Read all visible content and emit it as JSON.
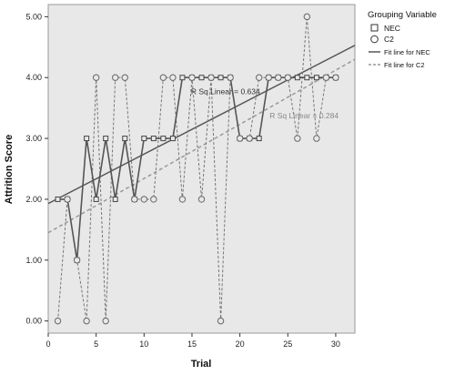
{
  "chart_data": {
    "type": "scatter",
    "xlabel": "Trial",
    "ylabel": "Attrition Score",
    "xlim": [
      0,
      32
    ],
    "ylim": [
      -0.2,
      5.2
    ],
    "xticks": [
      0,
      5,
      10,
      15,
      20,
      25,
      30
    ],
    "yticks": [
      0,
      1,
      2,
      3,
      4,
      5
    ],
    "ytick_labels": [
      "0.00",
      "1.00",
      "2.00",
      "3.00",
      "4.00",
      "5.00"
    ],
    "grid": false,
    "background": "#e8e8e8",
    "legend": {
      "title": "Grouping Variable",
      "placement": "right",
      "entries": [
        "NEC",
        "C2",
        "Fit line for NEC",
        "Fit line for C2"
      ]
    },
    "series": [
      {
        "name": "NEC",
        "marker": "square",
        "line": "solid",
        "color": "#555555",
        "x": [
          1,
          2,
          3,
          4,
          5,
          6,
          7,
          8,
          9,
          10,
          11,
          12,
          13,
          14,
          15,
          16,
          17,
          18,
          19,
          20,
          21,
          22,
          23,
          24,
          25,
          26,
          27,
          28,
          29,
          30
        ],
        "y": [
          2,
          2,
          1,
          3,
          2,
          3,
          2,
          3,
          2,
          3,
          3,
          3,
          3,
          4,
          4,
          4,
          4,
          4,
          4,
          3,
          3,
          3,
          4,
          4,
          4,
          4,
          4,
          4,
          4,
          4
        ]
      },
      {
        "name": "C2",
        "marker": "circle",
        "line": "dashed",
        "color": "#777777",
        "x": [
          1,
          2,
          3,
          4,
          5,
          6,
          7,
          8,
          9,
          10,
          11,
          12,
          13,
          14,
          15,
          16,
          17,
          18,
          19,
          20,
          21,
          22,
          23,
          24,
          25,
          26,
          27,
          28,
          29,
          30
        ],
        "y": [
          0,
          2,
          1,
          0,
          4,
          0,
          4,
          4,
          2,
          2,
          2,
          4,
          4,
          2,
          4,
          2,
          4,
          0,
          4,
          3,
          3,
          4,
          4,
          4,
          4,
          3,
          5,
          3,
          4,
          4
        ]
      }
    ],
    "fit_lines": [
      {
        "name": "Fit line for NEC",
        "style": "solid",
        "color": "#555555",
        "x": [
          0,
          32
        ],
        "y": [
          1.93,
          4.53
        ]
      },
      {
        "name": "Fit line for C2",
        "style": "dashed",
        "color": "#999999",
        "x": [
          0,
          32
        ],
        "y": [
          1.45,
          4.3
        ]
      }
    ],
    "annotations": [
      {
        "text": "R Sq Linear = 0.634",
        "x": 18.5,
        "y": 3.73,
        "color": "#333333"
      },
      {
        "text": "R Sq Linear = 0.284",
        "x": 26.7,
        "y": 3.33,
        "color": "#888888"
      }
    ]
  }
}
